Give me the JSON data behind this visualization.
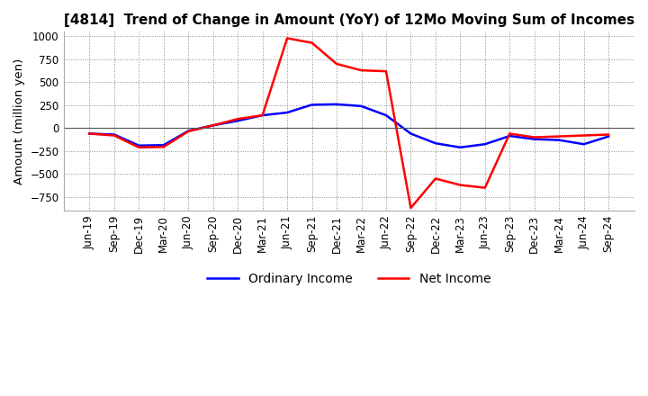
{
  "title": "[4814]  Trend of Change in Amount (YoY) of 12Mo Moving Sum of Incomes",
  "ylabel": "Amount (million yen)",
  "ylim": [
    -900,
    1050
  ],
  "yticks": [
    -750,
    -500,
    -250,
    0,
    250,
    500,
    750,
    1000
  ],
  "dates": [
    "Jun-19",
    "Sep-19",
    "Dec-19",
    "Mar-20",
    "Jun-20",
    "Sep-20",
    "Dec-20",
    "Mar-21",
    "Jun-21",
    "Sep-21",
    "Dec-21",
    "Mar-22",
    "Jun-22",
    "Sep-22",
    "Dec-22",
    "Mar-23",
    "Jun-23",
    "Sep-23",
    "Dec-23",
    "Mar-24",
    "Jun-24",
    "Sep-24"
  ],
  "ordinary_income": [
    -60,
    -70,
    -190,
    -185,
    -30,
    30,
    80,
    140,
    170,
    255,
    260,
    240,
    140,
    -60,
    -165,
    -210,
    -175,
    -85,
    -120,
    -130,
    -175,
    -90
  ],
  "net_income": [
    -60,
    -80,
    -210,
    -205,
    -35,
    30,
    100,
    140,
    980,
    930,
    700,
    630,
    620,
    -870,
    -550,
    -620,
    -650,
    -60,
    -100,
    -90,
    -80,
    -70
  ],
  "ordinary_color": "#0000ff",
  "net_color": "#ff0000",
  "background_color": "#ffffff",
  "title_fontsize": 11,
  "legend_fontsize": 10,
  "tick_fontsize": 8.5
}
